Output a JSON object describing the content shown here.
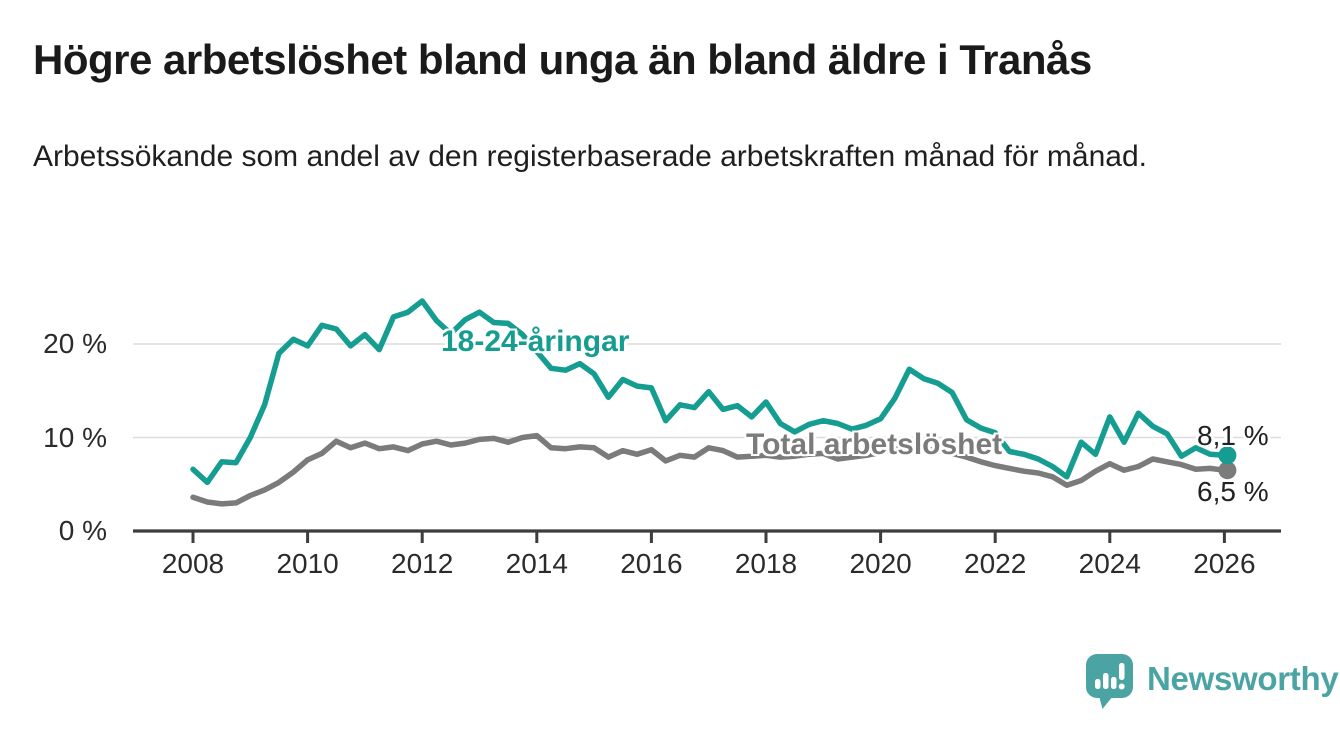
{
  "header": {
    "title": "Högre arbetslöshet bland unga än bland äldre i Tranås",
    "subtitle": "Arbetssökande som andel av den registerbaserade arbetskraften månad för månad."
  },
  "chart_data": {
    "type": "line",
    "title": "Högre arbetslöshet bland unga än bland äldre i Tranås",
    "xlabel": "",
    "ylabel": "Arbetssökande som andel av den registerbaserade arbetskraften (%)",
    "x_unit": "år (kvartalsupplösning av månadsserie)",
    "ylim": [
      0,
      26
    ],
    "xlim": [
      2007.4,
      2027.0
    ],
    "grid": "horizontal",
    "legend": "inline-labels",
    "yticks": [
      {
        "value": 0,
        "label": "0 %"
      },
      {
        "value": 10,
        "label": "10 %"
      },
      {
        "value": 20,
        "label": "20 %"
      }
    ],
    "xticks": [
      "2008",
      "2010",
      "2012",
      "2014",
      "2016",
      "2018",
      "2020",
      "2022",
      "2024",
      "2026"
    ],
    "xtick_values": [
      2008,
      2010,
      2012,
      2014,
      2016,
      2018,
      2020,
      2022,
      2024,
      2026
    ],
    "x": [
      2008,
      2008.25,
      2008.5,
      2008.75,
      2009,
      2009.25,
      2009.5,
      2009.75,
      2010,
      2010.25,
      2010.5,
      2010.75,
      2011,
      2011.25,
      2011.5,
      2011.75,
      2012,
      2012.25,
      2012.5,
      2012.75,
      2013,
      2013.25,
      2013.5,
      2013.75,
      2014,
      2014.25,
      2014.5,
      2014.75,
      2015,
      2015.25,
      2015.5,
      2015.75,
      2016,
      2016.25,
      2016.5,
      2016.75,
      2017,
      2017.25,
      2017.5,
      2017.75,
      2018,
      2018.25,
      2018.5,
      2018.75,
      2019,
      2019.25,
      2019.5,
      2019.75,
      2020,
      2020.25,
      2020.5,
      2020.75,
      2021,
      2021.25,
      2021.5,
      2021.75,
      2022,
      2022.25,
      2022.5,
      2022.75,
      2023,
      2023.25,
      2023.5,
      2023.75,
      2024,
      2024.25,
      2024.5,
      2024.75,
      2025,
      2025.25,
      2025.5,
      2025.75,
      2026
    ],
    "series": [
      {
        "name": "18-24-åringar",
        "color": "#169d92",
        "end_label": "8,1 %",
        "end_value": 8.1,
        "values": [
          6.6,
          5.2,
          7.4,
          7.3,
          10.0,
          13.5,
          19.0,
          20.5,
          19.8,
          22.0,
          21.6,
          19.8,
          21.0,
          19.4,
          22.9,
          23.4,
          24.6,
          22.5,
          21.1,
          22.6,
          23.4,
          22.3,
          22.2,
          21.0,
          19.2,
          17.4,
          17.2,
          17.9,
          16.8,
          14.3,
          16.2,
          15.5,
          15.3,
          11.8,
          13.5,
          13.2,
          14.9,
          13.0,
          13.4,
          12.2,
          13.8,
          11.5,
          10.6,
          11.4,
          11.8,
          11.5,
          10.9,
          11.3,
          12.0,
          14.2,
          17.3,
          16.3,
          15.8,
          14.8,
          11.9,
          11.0,
          10.5,
          8.5,
          8.2,
          7.7,
          6.9,
          5.8,
          9.5,
          8.2,
          12.2,
          9.5,
          12.6,
          11.2,
          10.4,
          8.0,
          8.9,
          8.2,
          8.1
        ]
      },
      {
        "name": "Total arbetslöshet",
        "color": "#7b7b7b",
        "end_label": "6,5 %",
        "end_value": 6.5,
        "values": [
          3.6,
          3.1,
          2.9,
          3.0,
          3.8,
          4.4,
          5.2,
          6.3,
          7.6,
          8.3,
          9.6,
          8.9,
          9.4,
          8.8,
          9.0,
          8.6,
          9.3,
          9.6,
          9.2,
          9.4,
          9.8,
          9.9,
          9.5,
          10.0,
          10.2,
          8.9,
          8.8,
          9.0,
          8.9,
          7.9,
          8.6,
          8.2,
          8.7,
          7.5,
          8.1,
          7.9,
          8.9,
          8.6,
          7.9,
          8.0,
          8.1,
          7.9,
          8.0,
          8.2,
          8.3,
          7.7,
          7.9,
          8.1,
          8.4,
          8.8,
          9.0,
          8.8,
          8.6,
          8.3,
          7.9,
          7.4,
          7.0,
          6.7,
          6.4,
          6.2,
          5.8,
          4.9,
          5.4,
          6.4,
          7.2,
          6.5,
          6.9,
          7.7,
          7.4,
          7.1,
          6.6,
          6.7,
          6.5
        ]
      }
    ]
  },
  "footer": {
    "brand": "Newsworthy",
    "logo_icon": "bar-chart-speech-bubble-icon"
  },
  "colors": {
    "youth_line": "#169d92",
    "total_line": "#7b7b7b",
    "gridline": "#dcdcdc",
    "axis": "#3d3d3d",
    "text": "#1a1a1a",
    "brand_teal": "#4ba4a3",
    "background": "#ffffff"
  }
}
